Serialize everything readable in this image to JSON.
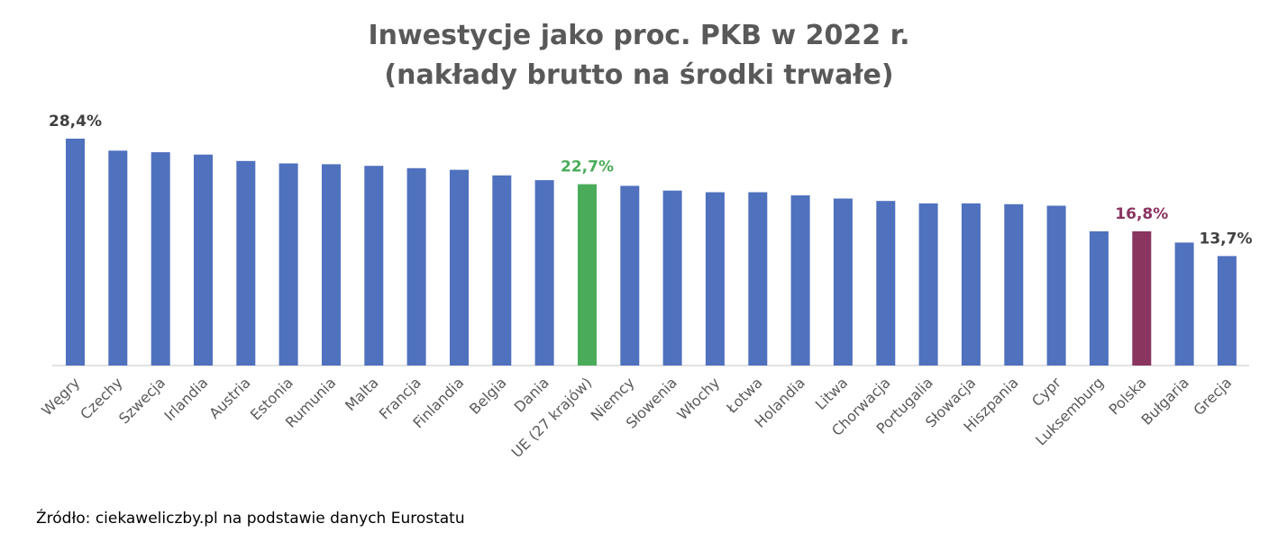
{
  "chart_data": {
    "type": "bar",
    "title_line1": "Inwestycje jako proc. PKB  w 2022 r.",
    "title_line2": "(nakłady brutto na środki trwałe)",
    "categories": [
      "Węgry",
      "Czechy",
      "Szwecja",
      "Irlandia",
      "Austria",
      "Estonia",
      "Rumunia",
      "Malta",
      "Francja",
      "Finlandia",
      "Belgia",
      "Dania",
      "UE (27 krajów)",
      "Niemcy",
      "Słowenia",
      "Włochy",
      "Łotwa",
      "Holandia",
      "Litwa",
      "Chorwacja",
      "Portugalia",
      "Słowacja",
      "Hiszpania",
      "Cypr",
      "Luksemburg",
      "Polska",
      "Bułgaria",
      "Grecja"
    ],
    "values": [
      28.4,
      26.9,
      26.7,
      26.4,
      25.6,
      25.3,
      25.2,
      25.0,
      24.7,
      24.5,
      23.8,
      23.2,
      22.7,
      22.5,
      21.9,
      21.7,
      21.7,
      21.3,
      20.9,
      20.6,
      20.3,
      20.3,
      20.2,
      20.0,
      16.8,
      16.8,
      15.4,
      13.7
    ],
    "data_labels": [
      {
        "category": "Węgry",
        "text": "28,4%"
      },
      {
        "category": "UE (27 krajów)",
        "text": "22,7%"
      },
      {
        "category": "Polska",
        "text": "16,8%"
      },
      {
        "category": "Grecja",
        "text": "13,7%"
      }
    ],
    "colors": {
      "default": "#4f71be",
      "highlight_eu": "#4aac5a",
      "highlight_pl": "#8a3460",
      "label_default": "#404040",
      "label_eu": "#4aac5a",
      "label_pl": "#8a3460",
      "axis": "#d9d9d9",
      "tick_label": "#595959"
    },
    "highlight": {
      "UE (27 krajów)": "highlight_eu",
      "Polska": "highlight_pl"
    },
    "ylim": [
      0,
      28.4
    ],
    "grid": false,
    "legend": "none"
  },
  "source_text": "Źródło: ciekaweliczby.pl na podstawie danych Eurostatu"
}
